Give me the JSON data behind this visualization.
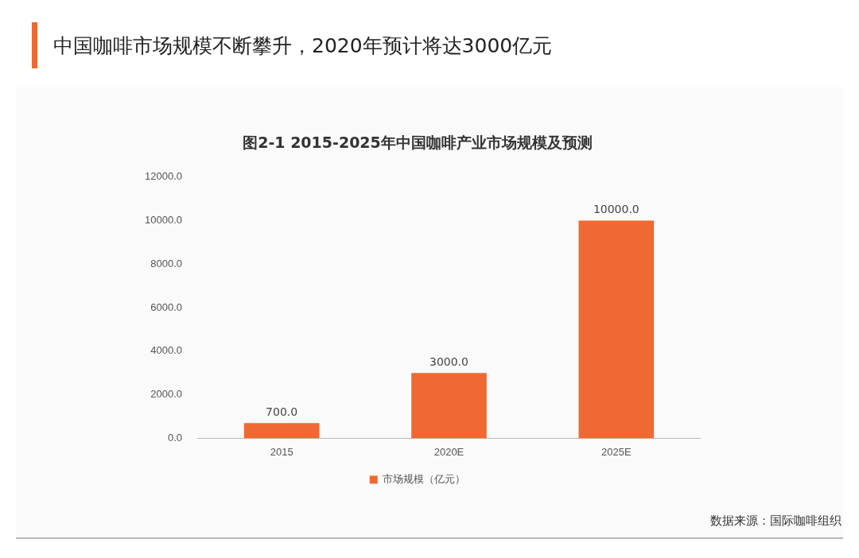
{
  "chart_data": {
    "type": "bar",
    "title": "中国咖啡市场规模不断攀升，2020年预计将达3000亿元",
    "subtitle": "图2-1 2015-2025年中国咖啡产业市场规模及预测",
    "categories": [
      "2015",
      "2020E",
      "2025E"
    ],
    "series": [
      {
        "name": "市场规模（亿元）",
        "color": "#ee6a32",
        "values": [
          700,
          3000,
          10000
        ],
        "value_labels": [
          "700.0",
          "3000.0",
          "10000.0"
        ]
      }
    ],
    "ylim": [
      0,
      12000
    ],
    "yticks": [
      {
        "value": 0,
        "label": "0.0"
      },
      {
        "value": 2000,
        "label": "2000.0"
      },
      {
        "value": 4000,
        "label": "4000.0"
      },
      {
        "value": 6000,
        "label": "6000.0"
      },
      {
        "value": 8000,
        "label": "8000.0"
      },
      {
        "value": 10000,
        "label": "10000.0"
      },
      {
        "value": 12000,
        "label": "12000.0"
      }
    ],
    "legend": "bottom",
    "annotations": [
      "数据来源：国际咖啡组织"
    ]
  }
}
